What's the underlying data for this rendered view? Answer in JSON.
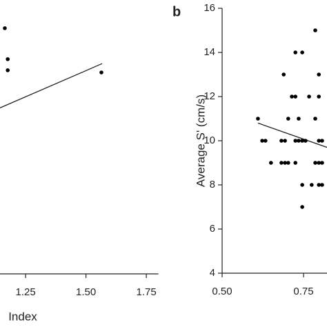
{
  "chart_data": [
    {
      "type": "scatter",
      "xlabel": "Index",
      "x": [
        1.164,
        1.176,
        1.176,
        1.564
      ],
      "values": [
        15.1,
        13.7,
        13.2,
        13.1
      ],
      "color": "#000000",
      "trendline": {
        "x": [
          1.144,
          1.567
        ],
        "y": [
          11.5,
          13.5
        ]
      },
      "xlim": [
        1.144,
        1.8
      ],
      "xticks": [
        1.25,
        {
          "value": 1.5,
          "label": "1.50"
        },
        1.75
      ],
      "ylim": [
        4,
        16
      ]
    },
    {
      "type": "scatter",
      "panel_label": "b",
      "ylabel": "Average S' (cm/s)",
      "x": [
        0.61,
        0.65,
        0.682,
        0.693,
        0.703,
        0.725,
        0.786,
        0.797,
        0.807,
        0.623,
        0.633,
        0.682,
        0.693,
        0.725,
        0.735,
        0.746,
        0.756,
        0.797,
        0.807,
        0.703,
        0.735,
        0.786,
        0.714,
        0.725,
        0.767,
        0.797,
        0.689,
        0.797,
        0.725,
        0.746,
        0.786,
        0.746,
        0.775,
        0.797,
        0.807,
        0.746
      ],
      "values": [
        11,
        9,
        9,
        9,
        9,
        9,
        9,
        9,
        9,
        10,
        10,
        10,
        10,
        10,
        10,
        10,
        10,
        10,
        10,
        11,
        11,
        11,
        12,
        12,
        12,
        12,
        13,
        13,
        14,
        14,
        15,
        8,
        8,
        8,
        8,
        7
      ],
      "color": "#000000",
      "trendline": {
        "x": [
          0.61,
          0.822
        ],
        "y": [
          10.8,
          9.7
        ]
      },
      "xlim": [
        0.5,
        0.822
      ],
      "xticks": [
        {
          "value": 0.5,
          "label": "0.50"
        },
        0.75
      ],
      "ylim": [
        4,
        16
      ],
      "yticks": [
        4,
        6,
        8,
        10,
        12,
        14,
        16
      ]
    }
  ]
}
